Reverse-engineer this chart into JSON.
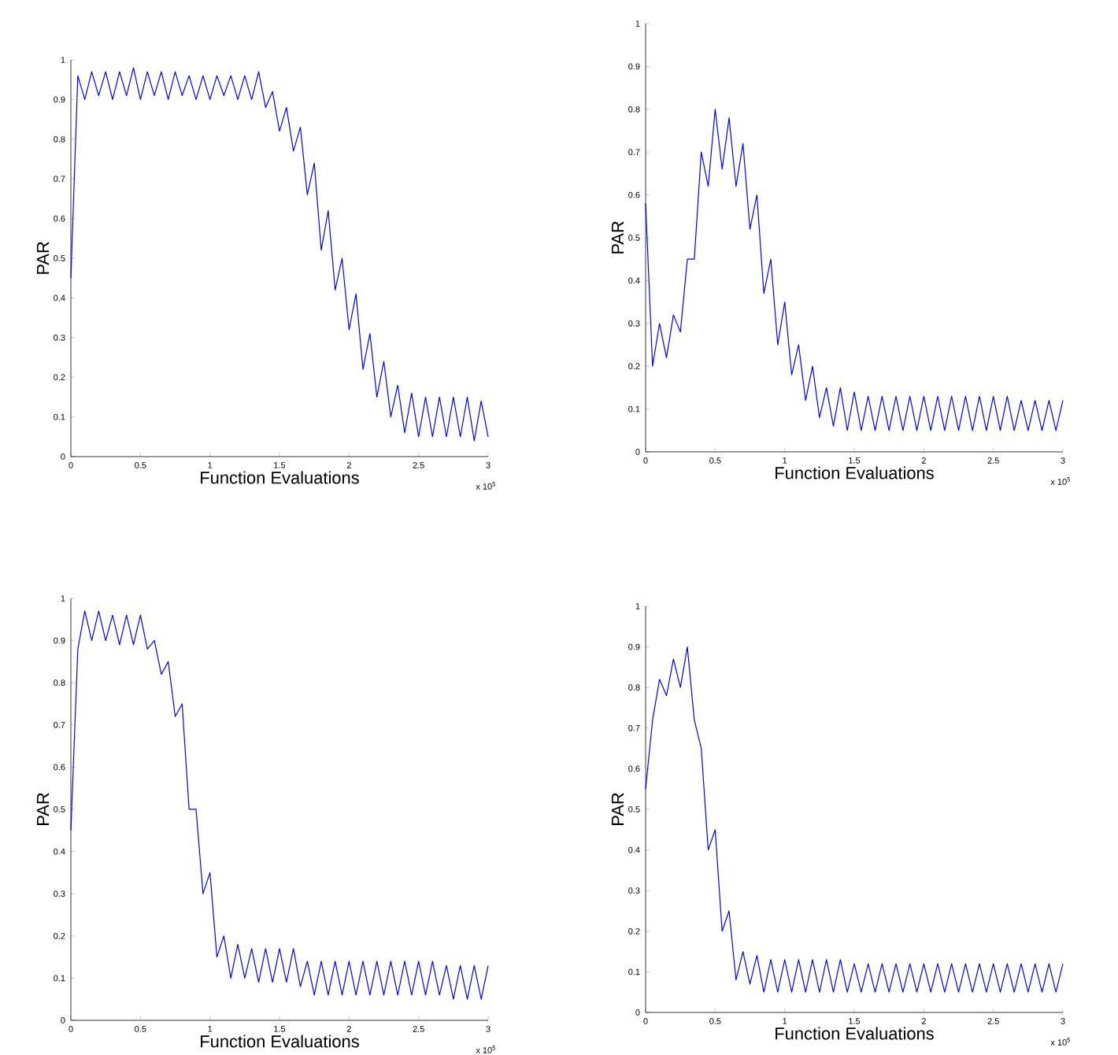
{
  "chart_data": [
    {
      "type": "line",
      "xlabel": "Function Evaluations",
      "ylabel": "PAR",
      "annotations": [
        "x 10$^{5}$"
      ],
      "xlim": [
        0,
        3
      ],
      "ylim": [
        0,
        1
      ],
      "xticks": [
        0,
        0.5,
        1,
        1.5,
        2,
        2.5,
        3
      ],
      "yticks": [
        0,
        0.1,
        0.2,
        0.3,
        0.4,
        0.5,
        0.6,
        0.7,
        0.8,
        0.9,
        1
      ],
      "x": [
        0,
        0.05,
        0.1,
        0.15,
        0.2,
        0.25,
        0.3,
        0.35,
        0.4,
        0.45,
        0.5,
        0.55,
        0.6,
        0.65,
        0.7,
        0.75,
        0.8,
        0.85,
        0.9,
        0.95,
        1,
        1.05,
        1.1,
        1.15,
        1.2,
        1.25,
        1.3,
        1.35,
        1.4,
        1.45,
        1.5,
        1.55,
        1.6,
        1.65,
        1.7,
        1.75,
        1.8,
        1.85,
        1.9,
        1.95,
        2,
        2.05,
        2.1,
        2.15,
        2.2,
        2.25,
        2.3,
        2.35,
        2.4,
        2.45,
        2.5,
        2.55,
        2.6,
        2.65,
        2.7,
        2.75,
        2.8,
        2.85,
        2.9,
        2.95,
        3
      ],
      "series": [
        {
          "color": "#0000ff",
          "values": [
            0.45,
            0.96,
            0.9,
            0.97,
            0.91,
            0.97,
            0.9,
            0.97,
            0.91,
            0.98,
            0.9,
            0.97,
            0.91,
            0.97,
            0.9,
            0.97,
            0.91,
            0.96,
            0.9,
            0.96,
            0.9,
            0.96,
            0.91,
            0.96,
            0.9,
            0.96,
            0.9,
            0.97,
            0.88,
            0.92,
            0.82,
            0.88,
            0.77,
            0.83,
            0.66,
            0.74,
            0.52,
            0.62,
            0.42,
            0.5,
            0.32,
            0.41,
            0.22,
            0.31,
            0.15,
            0.24,
            0.1,
            0.18,
            0.06,
            0.16,
            0.05,
            0.15,
            0.05,
            0.15,
            0.05,
            0.15,
            0.05,
            0.15,
            0.04,
            0.14,
            0.05
          ]
        }
      ]
    },
    {
      "type": "line",
      "xlabel": "Function Evaluations",
      "ylabel": "PAR",
      "annotations": [
        "x 10$^{5}$"
      ],
      "xlim": [
        0,
        3
      ],
      "ylim": [
        0,
        1
      ],
      "xticks": [
        0,
        0.5,
        1,
        1.5,
        2,
        2.5,
        3
      ],
      "yticks": [
        0,
        0.1,
        0.2,
        0.3,
        0.4,
        0.5,
        0.6,
        0.7,
        0.8,
        0.9,
        1
      ],
      "x": [
        0,
        0.05,
        0.1,
        0.15,
        0.2,
        0.25,
        0.3,
        0.35,
        0.4,
        0.45,
        0.5,
        0.55,
        0.6,
        0.65,
        0.7,
        0.75,
        0.8,
        0.85,
        0.9,
        0.95,
        1,
        1.05,
        1.1,
        1.15,
        1.2,
        1.25,
        1.3,
        1.35,
        1.4,
        1.45,
        1.5,
        1.55,
        1.6,
        1.65,
        1.7,
        1.75,
        1.8,
        1.85,
        1.9,
        1.95,
        2,
        2.05,
        2.1,
        2.15,
        2.2,
        2.25,
        2.3,
        2.35,
        2.4,
        2.45,
        2.5,
        2.55,
        2.6,
        2.65,
        2.7,
        2.75,
        2.8,
        2.85,
        2.9,
        2.95,
        3
      ],
      "series": [
        {
          "color": "#0000ff",
          "values": [
            0.58,
            0.2,
            0.3,
            0.22,
            0.32,
            0.28,
            0.45,
            0.45,
            0.7,
            0.62,
            0.8,
            0.66,
            0.78,
            0.62,
            0.72,
            0.52,
            0.6,
            0.37,
            0.45,
            0.25,
            0.35,
            0.18,
            0.25,
            0.12,
            0.2,
            0.08,
            0.15,
            0.06,
            0.15,
            0.05,
            0.14,
            0.05,
            0.13,
            0.05,
            0.13,
            0.05,
            0.13,
            0.05,
            0.13,
            0.05,
            0.13,
            0.05,
            0.13,
            0.05,
            0.13,
            0.05,
            0.13,
            0.05,
            0.13,
            0.05,
            0.13,
            0.05,
            0.13,
            0.05,
            0.12,
            0.05,
            0.12,
            0.05,
            0.12,
            0.05,
            0.12
          ]
        }
      ]
    },
    {
      "type": "line",
      "xlabel": "Function Evaluations",
      "ylabel": "PAR",
      "annotations": [
        "x 10$^{5}$"
      ],
      "xlim": [
        0,
        3
      ],
      "ylim": [
        0,
        1
      ],
      "xticks": [
        0,
        0.5,
        1,
        1.5,
        2,
        2.5,
        3
      ],
      "yticks": [
        0,
        0.1,
        0.2,
        0.3,
        0.4,
        0.5,
        0.6,
        0.7,
        0.8,
        0.9,
        1
      ],
      "x": [
        0,
        0.05,
        0.1,
        0.15,
        0.2,
        0.25,
        0.3,
        0.35,
        0.4,
        0.45,
        0.5,
        0.55,
        0.6,
        0.65,
        0.7,
        0.75,
        0.8,
        0.85,
        0.9,
        0.95,
        1,
        1.05,
        1.1,
        1.15,
        1.2,
        1.25,
        1.3,
        1.35,
        1.4,
        1.45,
        1.5,
        1.55,
        1.6,
        1.65,
        1.7,
        1.75,
        1.8,
        1.85,
        1.9,
        1.95,
        2,
        2.05,
        2.1,
        2.15,
        2.2,
        2.25,
        2.3,
        2.35,
        2.4,
        2.45,
        2.5,
        2.55,
        2.6,
        2.65,
        2.7,
        2.75,
        2.8,
        2.85,
        2.9,
        2.95,
        3
      ],
      "series": [
        {
          "color": "#0000ff",
          "values": [
            0.45,
            0.88,
            0.97,
            0.9,
            0.97,
            0.9,
            0.96,
            0.89,
            0.96,
            0.89,
            0.96,
            0.88,
            0.9,
            0.82,
            0.85,
            0.72,
            0.75,
            0.5,
            0.5,
            0.3,
            0.35,
            0.15,
            0.2,
            0.1,
            0.18,
            0.1,
            0.17,
            0.09,
            0.17,
            0.09,
            0.17,
            0.09,
            0.17,
            0.08,
            0.14,
            0.06,
            0.14,
            0.06,
            0.14,
            0.06,
            0.14,
            0.06,
            0.14,
            0.06,
            0.14,
            0.06,
            0.14,
            0.06,
            0.14,
            0.06,
            0.14,
            0.06,
            0.14,
            0.06,
            0.13,
            0.05,
            0.13,
            0.05,
            0.13,
            0.05,
            0.13
          ]
        }
      ]
    },
    {
      "type": "line",
      "xlabel": "Function Evaluations",
      "ylabel": "PAR",
      "annotations": [
        "x 10$^{5}$"
      ],
      "xlim": [
        0,
        3
      ],
      "ylim": [
        0,
        1
      ],
      "xticks": [
        0,
        0.5,
        1,
        1.5,
        2,
        2.5,
        3
      ],
      "yticks": [
        0,
        0.1,
        0.2,
        0.3,
        0.4,
        0.5,
        0.6,
        0.7,
        0.8,
        0.9,
        1
      ],
      "x": [
        0,
        0.05,
        0.1,
        0.15,
        0.2,
        0.25,
        0.3,
        0.35,
        0.4,
        0.45,
        0.5,
        0.55,
        0.6,
        0.65,
        0.7,
        0.75,
        0.8,
        0.85,
        0.9,
        0.95,
        1,
        1.05,
        1.1,
        1.15,
        1.2,
        1.25,
        1.3,
        1.35,
        1.4,
        1.45,
        1.5,
        1.55,
        1.6,
        1.65,
        1.7,
        1.75,
        1.8,
        1.85,
        1.9,
        1.95,
        2,
        2.05,
        2.1,
        2.15,
        2.2,
        2.25,
        2.3,
        2.35,
        2.4,
        2.45,
        2.5,
        2.55,
        2.6,
        2.65,
        2.7,
        2.75,
        2.8,
        2.85,
        2.9,
        2.95,
        3
      ],
      "series": [
        {
          "color": "#0000ff",
          "values": [
            0.55,
            0.72,
            0.82,
            0.78,
            0.87,
            0.8,
            0.9,
            0.72,
            0.65,
            0.4,
            0.45,
            0.2,
            0.25,
            0.08,
            0.15,
            0.07,
            0.14,
            0.05,
            0.13,
            0.05,
            0.13,
            0.05,
            0.13,
            0.05,
            0.13,
            0.05,
            0.13,
            0.05,
            0.13,
            0.05,
            0.12,
            0.05,
            0.12,
            0.05,
            0.12,
            0.05,
            0.12,
            0.05,
            0.12,
            0.05,
            0.12,
            0.05,
            0.12,
            0.05,
            0.12,
            0.05,
            0.12,
            0.05,
            0.12,
            0.05,
            0.12,
            0.05,
            0.12,
            0.05,
            0.12,
            0.05,
            0.12,
            0.05,
            0.12,
            0.05,
            0.12
          ]
        }
      ]
    }
  ]
}
